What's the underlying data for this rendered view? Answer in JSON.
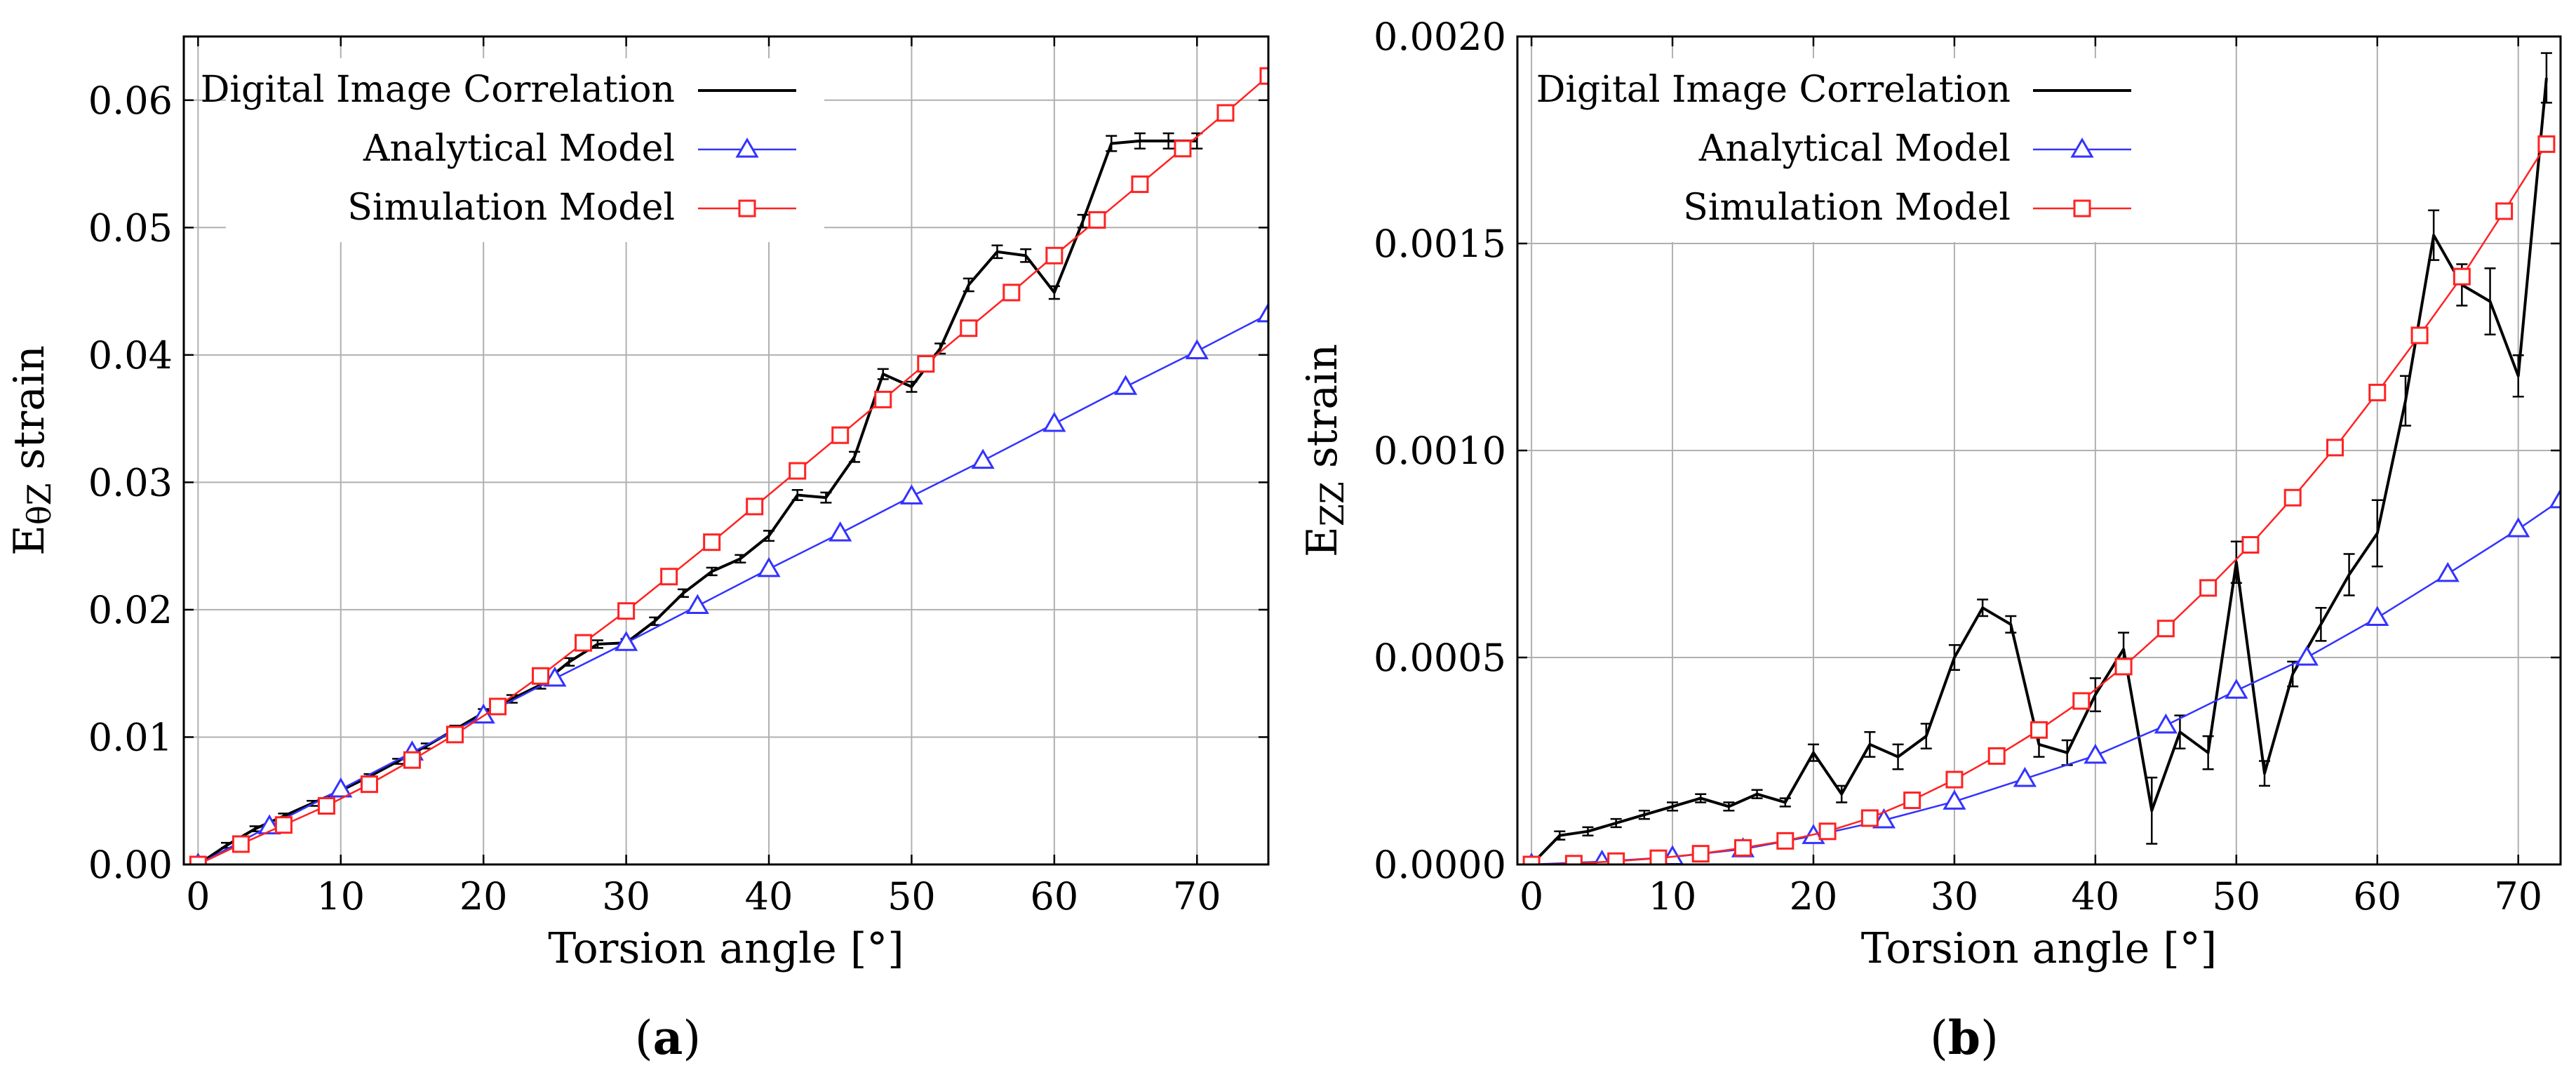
{
  "figure": {
    "panels": [
      {
        "caption_prefix": "(",
        "caption_letter": "a",
        "caption_suffix": ")"
      },
      {
        "caption_prefix": "(",
        "caption_letter": "b",
        "caption_suffix": ")"
      }
    ]
  },
  "chart_data": [
    {
      "type": "line",
      "panel": "a",
      "xlabel": "Torsion angle [°]",
      "ylabel_main": "E",
      "ylabel_sub": "θZ",
      "ylabel_rest": " strain",
      "xlim": [
        -1,
        75
      ],
      "ylim": [
        0,
        0.065
      ],
      "xticks": [
        0,
        10,
        20,
        30,
        40,
        50,
        60,
        70
      ],
      "yticks": [
        0.0,
        0.01,
        0.02,
        0.03,
        0.04,
        0.05,
        0.06
      ],
      "ytick_labels": [
        "0.00",
        "0.01",
        "0.02",
        "0.03",
        "0.04",
        "0.05",
        "0.06"
      ],
      "grid": true,
      "legend_position": "top-left",
      "series": [
        {
          "name": "Digital Image Correlation",
          "color": "#000000",
          "marker": "errorbar",
          "x": [
            0,
            2,
            4,
            6,
            8,
            10,
            12,
            14,
            16,
            18,
            20,
            22,
            24,
            26,
            28,
            30,
            32,
            34,
            36,
            38,
            40,
            42,
            44,
            46,
            48,
            50,
            52,
            54,
            56,
            58,
            60,
            62,
            64,
            66,
            68,
            70
          ],
          "y": [
            0,
            0.0015,
            0.0028,
            0.0038,
            0.0048,
            0.0058,
            0.0069,
            0.0081,
            0.0093,
            0.0106,
            0.0119,
            0.013,
            0.0141,
            0.0159,
            0.0173,
            0.0174,
            0.0191,
            0.0213,
            0.023,
            0.024,
            0.0258,
            0.029,
            0.0288,
            0.032,
            0.0385,
            0.0375,
            0.0405,
            0.0455,
            0.0481,
            0.0478,
            0.0449,
            0.0505,
            0.0566,
            0.0568,
            0.0568,
            0.0568
          ],
          "err": [
            0,
            0.0002,
            0.0002,
            0.0002,
            0.0002,
            0.0002,
            0.0002,
            0.0002,
            0.0002,
            0.0003,
            0.0003,
            0.0003,
            0.0003,
            0.0003,
            0.0003,
            0.0003,
            0.0003,
            0.0003,
            0.0003,
            0.0003,
            0.0004,
            0.0004,
            0.0004,
            0.0004,
            0.0004,
            0.0004,
            0.0004,
            0.0005,
            0.0005,
            0.0005,
            0.0005,
            0.0005,
            0.0006,
            0.0006,
            0.0006,
            0.0006
          ]
        },
        {
          "name": "Analytical Model",
          "color": "#3333ff",
          "marker": "triangle",
          "x": [
            0,
            5,
            10,
            15,
            20,
            25,
            30,
            35,
            40,
            45,
            50,
            55,
            60,
            65,
            70,
            75
          ],
          "y": [
            0,
            0.003,
            0.0059,
            0.0088,
            0.0117,
            0.0146,
            0.0174,
            0.0203,
            0.0232,
            0.026,
            0.0289,
            0.0317,
            0.0346,
            0.0375,
            0.0403,
            0.0432
          ]
        },
        {
          "name": "Simulation Model",
          "color": "#ff2222",
          "marker": "square",
          "x": [
            0,
            3,
            6,
            9,
            12,
            15,
            18,
            21,
            24,
            27,
            30,
            33,
            36,
            39,
            42,
            45,
            48,
            51,
            54,
            57,
            60,
            63,
            66,
            69,
            72,
            75
          ],
          "y": [
            0,
            0.0016,
            0.0031,
            0.0046,
            0.0063,
            0.0082,
            0.0102,
            0.0124,
            0.0148,
            0.0174,
            0.0199,
            0.0226,
            0.0253,
            0.0281,
            0.0309,
            0.0337,
            0.0365,
            0.0393,
            0.0421,
            0.0449,
            0.0478,
            0.0506,
            0.0534,
            0.0562,
            0.059,
            0.0619
          ]
        }
      ]
    },
    {
      "type": "line",
      "panel": "b",
      "xlabel": "Torsion angle [°]",
      "ylabel_main": "E",
      "ylabel_sub": "ZZ",
      "ylabel_rest": " strain",
      "xlim": [
        -1,
        73
      ],
      "ylim": [
        0,
        0.002
      ],
      "xticks": [
        0,
        10,
        20,
        30,
        40,
        50,
        60,
        70
      ],
      "yticks": [
        0.0,
        0.0005,
        0.001,
        0.0015,
        0.002
      ],
      "ytick_labels": [
        "0.0000",
        "0.0005",
        "0.0010",
        "0.0015",
        "0.0020"
      ],
      "grid": true,
      "legend_position": "top-left",
      "series": [
        {
          "name": "Digital Image Correlation",
          "color": "#000000",
          "marker": "errorbar",
          "x": [
            0,
            2,
            4,
            6,
            8,
            10,
            12,
            14,
            16,
            18,
            20,
            22,
            24,
            26,
            28,
            30,
            32,
            34,
            36,
            38,
            40,
            42,
            44,
            46,
            48,
            50,
            52,
            54,
            56,
            58,
            60,
            62,
            64,
            66,
            68,
            70,
            72
          ],
          "y": [
            0,
            7e-05,
            8e-05,
            0.0001,
            0.00012,
            0.00014,
            0.00016,
            0.00014,
            0.00017,
            0.00015,
            0.00027,
            0.00017,
            0.00029,
            0.00026,
            0.00031,
            0.0005,
            0.00062,
            0.00058,
            0.00029,
            0.00027,
            0.00041,
            0.00052,
            0.00013,
            0.00032,
            0.00027,
            0.00073,
            0.00022,
            0.00046,
            0.00058,
            0.0007,
            0.0008,
            0.00112,
            0.00152,
            0.0014,
            0.00136,
            0.00118,
            0.0019
          ],
          "err": [
            0,
            1e-05,
            1e-05,
            1e-05,
            1e-05,
            1e-05,
            1e-05,
            1e-05,
            1e-05,
            1e-05,
            2e-05,
            2e-05,
            3e-05,
            3e-05,
            3e-05,
            3e-05,
            2e-05,
            2e-05,
            3e-05,
            3e-05,
            4e-05,
            4e-05,
            8e-05,
            4e-05,
            4e-05,
            5e-05,
            3e-05,
            3e-05,
            4e-05,
            5e-05,
            8e-05,
            6e-05,
            6e-05,
            5e-05,
            8e-05,
            5e-05,
            6e-05
          ]
        },
        {
          "name": "Analytical Model",
          "color": "#3333ff",
          "marker": "triangle",
          "x": [
            0,
            5,
            10,
            15,
            20,
            25,
            30,
            35,
            40,
            45,
            50,
            55,
            60,
            65,
            70,
            73
          ],
          "y": [
            0,
            7e-06,
            1.8e-05,
            3.7e-05,
            6.9e-05,
            0.000107,
            0.000152,
            0.000207,
            0.000263,
            0.000336,
            0.00042,
            0.0005,
            0.000596,
            0.000702,
            0.00081,
            0.00088
          ]
        },
        {
          "name": "Simulation Model",
          "color": "#ff2222",
          "marker": "square",
          "x": [
            0,
            3,
            6,
            9,
            12,
            15,
            18,
            21,
            24,
            27,
            30,
            33,
            36,
            39,
            42,
            45,
            48,
            51,
            54,
            57,
            60,
            63,
            66,
            69,
            72
          ],
          "y": [
            0,
            2e-06,
            8e-06,
            1.5e-05,
            2.6e-05,
            4e-05,
            5.7e-05,
            8e-05,
            0.000112,
            0.000155,
            0.000205,
            0.000262,
            0.000325,
            0.000395,
            0.000478,
            0.00057,
            0.000668,
            0.000772,
            0.000886,
            0.001007,
            0.00114,
            0.001278,
            0.00142,
            0.001578,
            0.00174
          ]
        }
      ]
    }
  ]
}
